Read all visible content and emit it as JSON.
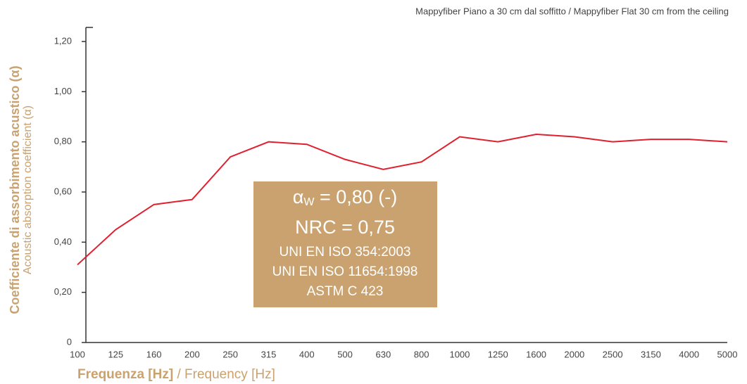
{
  "chart_data": {
    "type": "line",
    "title": "Mappyfiber Piano a 30 cm dal soffitto / Mappyfiber Flat 30 cm from the ceiling",
    "y_label_bold": "Coefficiente di assorbimento acustico (α)",
    "y_label": "Acoustic absorption coefficient (α)",
    "x_label_bold": "Frequenza [Hz]",
    "x_label": " / Frequency [Hz]",
    "categories": [
      100,
      125,
      160,
      200,
      250,
      315,
      400,
      500,
      630,
      800,
      1000,
      1250,
      1600,
      2000,
      2500,
      3150,
      4000,
      5000
    ],
    "series": [
      {
        "color": "#e0202e",
        "values": [
          0.31,
          0.45,
          0.55,
          0.57,
          0.74,
          0.8,
          0.79,
          0.73,
          0.69,
          0.72,
          0.82,
          0.8,
          0.83,
          0.82,
          0.8,
          0.81,
          0.81,
          0.8
        ]
      }
    ],
    "ylim": [
      0,
      1.2
    ],
    "yticks": [
      0,
      {
        "value": 0.2,
        "label": "0,20"
      },
      {
        "value": 0.4,
        "label": "0,40"
      },
      {
        "value": 0.6,
        "label": "0,60"
      },
      {
        "value": 0.8,
        "label": "0,80"
      },
      {
        "value": 1.0,
        "label": "1,00"
      },
      {
        "value": 1.2,
        "label": "1,20"
      }
    ],
    "annotation": {
      "color": "#c9a26f",
      "symbol": "α",
      "subscript": "W",
      "first": " = 0,80 (-)",
      "lines": [
        "NRC = 0,75",
        "UNI EN ISO 354:2003",
        "UNI EN ISO 11654:1998",
        "ASTM C 423"
      ]
    }
  }
}
